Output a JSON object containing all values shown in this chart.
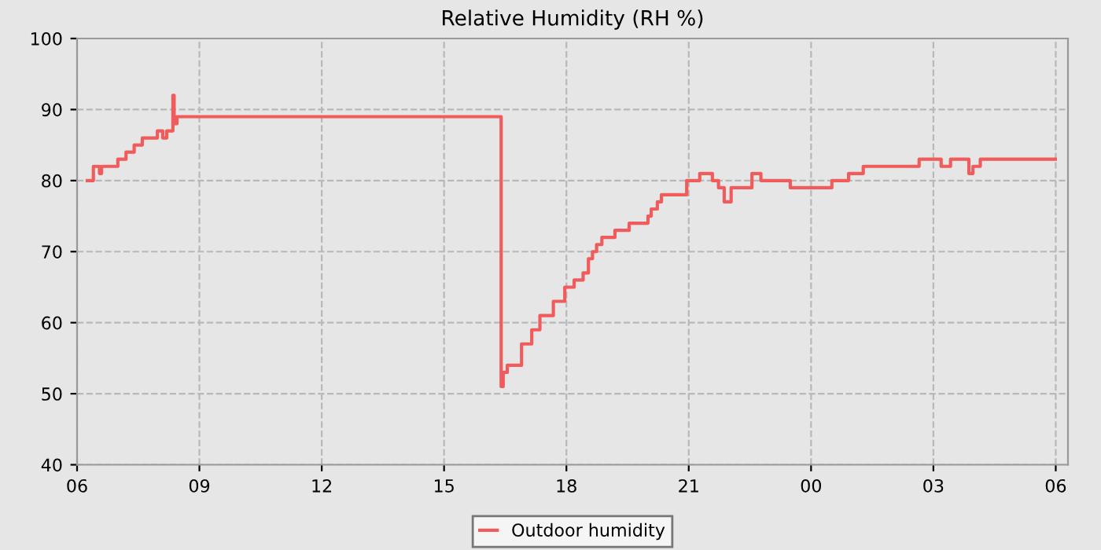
{
  "chart_data": {
    "type": "step",
    "title": "Relative Humidity (RH %)",
    "series": [
      {
        "name": "Outdoor humidity",
        "color": "#f05c5c",
        "x": [
          6.25,
          6.4,
          6.55,
          6.6,
          7.0,
          7.2,
          7.4,
          7.6,
          7.97,
          8.1,
          8.2,
          8.35,
          8.38,
          8.45,
          16.35,
          16.4,
          16.45,
          16.55,
          16.9,
          17.15,
          17.35,
          17.68,
          17.96,
          18.19,
          18.41,
          18.54,
          18.64,
          18.74,
          18.87,
          19.19,
          19.54,
          20.0,
          20.08,
          20.23,
          20.33,
          20.95,
          21.27,
          21.58,
          21.73,
          21.87,
          22.04,
          22.55,
          22.77,
          23.49,
          24.51,
          24.92,
          25.28,
          26.65,
          27.19,
          27.42,
          27.87,
          27.97,
          28.15,
          29.99
        ],
        "values": [
          80,
          82,
          81,
          82,
          83,
          84,
          85,
          86,
          87,
          86,
          87,
          92,
          88,
          89,
          89,
          51,
          53,
          54,
          57,
          59,
          61,
          63,
          65,
          66,
          67,
          69,
          70,
          71,
          72,
          73,
          74,
          75,
          76,
          77,
          78,
          80,
          81,
          80,
          79,
          77,
          79,
          81,
          80,
          79,
          80,
          81,
          82,
          83,
          82,
          83,
          81,
          82,
          83,
          83
        ]
      }
    ],
    "xlim": [
      6,
      30.3
    ],
    "xticks": [
      {
        "value": 6,
        "label": "06"
      },
      {
        "value": 9,
        "label": "09"
      },
      {
        "value": 12,
        "label": "12"
      },
      {
        "value": 15,
        "label": "15"
      },
      {
        "value": 18,
        "label": "18"
      },
      {
        "value": 21,
        "label": "21"
      },
      {
        "value": 24,
        "label": "00"
      },
      {
        "value": 27,
        "label": "03"
      },
      {
        "value": 30,
        "label": "06"
      }
    ],
    "ylim": [
      40,
      100
    ],
    "yticks": [
      40,
      50,
      60,
      70,
      80,
      90,
      100
    ],
    "grid": true,
    "legend": "bottom",
    "marker": "none",
    "line_style": "solid"
  }
}
